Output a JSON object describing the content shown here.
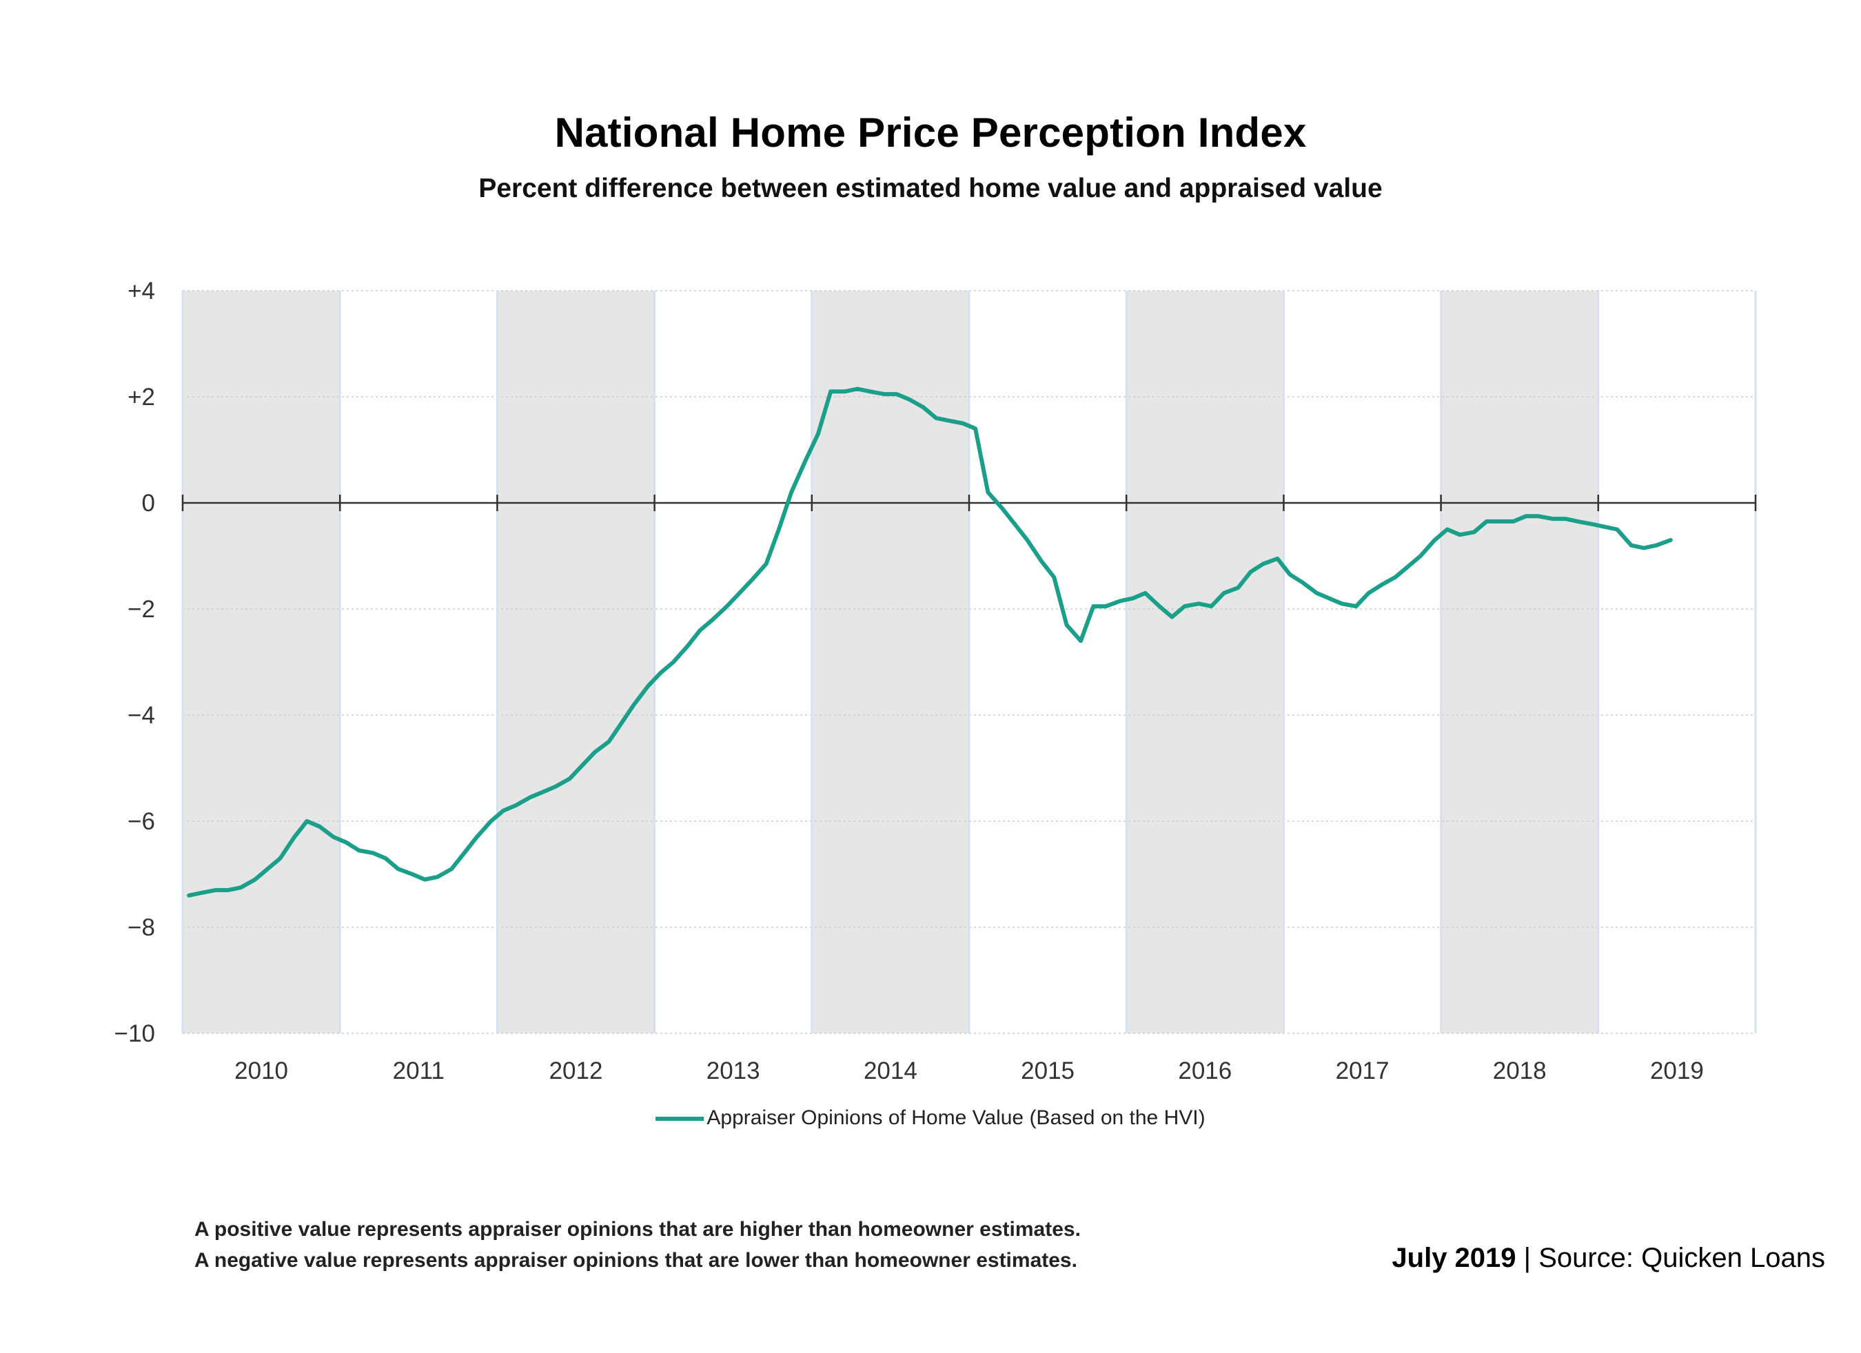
{
  "header": {
    "title": "National Home Price Perception Index",
    "subtitle": "Percent difference between estimated home value and appraised value"
  },
  "legend": {
    "label": "Appraiser Opinions of Home Value (Based on the HVI)"
  },
  "notes": {
    "positive": "A positive value represents appraiser opinions that are higher than homeowner estimates.",
    "negative": "A negative value represents appraiser opinions that are lower than homeowner estimates."
  },
  "source": {
    "date": "July 2019",
    "separator": "|",
    "text": "Source: Quicken Loans"
  },
  "colors": {
    "line": "#1a9f8a",
    "band": "#e6e6e6",
    "zero": "#333333",
    "grid": "#cccccc"
  },
  "chart_data": {
    "type": "line",
    "y_tick_labels": [
      "+4",
      "+2",
      "0",
      "−2",
      "−4",
      "−6",
      "−8",
      "−10"
    ],
    "y_tick_values": [
      4,
      2,
      0,
      -2,
      -4,
      -6,
      -8,
      -10
    ],
    "ylim": [
      -10,
      4
    ],
    "x_tick_labels": [
      "2010",
      "2011",
      "2012",
      "2013",
      "2014",
      "2015",
      "2016",
      "2017",
      "2018",
      "2019"
    ],
    "xlim": [
      2010.0,
      2020.0
    ],
    "shaded_years": [
      "2010",
      "2012",
      "2014",
      "2016",
      "2018"
    ],
    "grid": true,
    "series": [
      {
        "name": "Appraiser Opinions of Home Value (Based on the HVI)",
        "color": "#1a9f8a",
        "x": [
          2010.04,
          2010.12,
          2010.21,
          2010.29,
          2010.37,
          2010.46,
          2010.54,
          2010.62,
          2010.71,
          2010.79,
          2010.87,
          2010.96,
          2011.04,
          2011.12,
          2011.21,
          2011.29,
          2011.37,
          2011.46,
          2011.54,
          2011.62,
          2011.71,
          2011.79,
          2011.87,
          2011.96,
          2012.04,
          2012.12,
          2012.21,
          2012.29,
          2012.37,
          2012.46,
          2012.54,
          2012.62,
          2012.71,
          2012.79,
          2012.87,
          2012.96,
          2013.04,
          2013.12,
          2013.21,
          2013.29,
          2013.37,
          2013.46,
          2013.54,
          2013.62,
          2013.71,
          2013.79,
          2013.87,
          2013.96,
          2014.04,
          2014.12,
          2014.21,
          2014.29,
          2014.37,
          2014.46,
          2014.54,
          2014.62,
          2014.71,
          2014.79,
          2014.87,
          2014.96,
          2015.04,
          2015.12,
          2015.21,
          2015.29,
          2015.37,
          2015.46,
          2015.54,
          2015.62,
          2015.71,
          2015.79,
          2015.87,
          2015.96,
          2016.04,
          2016.12,
          2016.21,
          2016.29,
          2016.37,
          2016.46,
          2016.54,
          2016.62,
          2016.71,
          2016.79,
          2016.87,
          2016.96,
          2017.04,
          2017.12,
          2017.21,
          2017.29,
          2017.37,
          2017.46,
          2017.54,
          2017.62,
          2017.71,
          2017.79,
          2017.87,
          2017.96,
          2018.04,
          2018.12,
          2018.21,
          2018.29,
          2018.37,
          2018.46,
          2018.54,
          2018.62,
          2018.71,
          2018.79,
          2018.87,
          2018.96,
          2019.04,
          2019.12,
          2019.21,
          2019.29,
          2019.37,
          2019.46
        ],
        "values": [
          -7.4,
          -7.35,
          -7.3,
          -7.3,
          -7.25,
          -7.1,
          -6.9,
          -6.7,
          -6.3,
          -6.0,
          -6.1,
          -6.3,
          -6.4,
          -6.55,
          -6.6,
          -6.7,
          -6.9,
          -7.0,
          -7.1,
          -7.05,
          -6.9,
          -6.6,
          -6.3,
          -6.0,
          -5.8,
          -5.7,
          -5.55,
          -5.45,
          -5.35,
          -5.2,
          -4.95,
          -4.7,
          -4.5,
          -4.15,
          -3.8,
          -3.45,
          -3.2,
          -3.0,
          -2.7,
          -2.4,
          -2.2,
          -1.95,
          -1.7,
          -1.45,
          -1.15,
          -0.5,
          0.2,
          0.8,
          1.3,
          2.1,
          2.1,
          2.15,
          2.1,
          2.05,
          2.05,
          1.95,
          1.8,
          1.6,
          1.55,
          1.5,
          1.4,
          0.2,
          -0.1,
          -0.4,
          -0.7,
          -1.1,
          -1.4,
          -2.3,
          -2.6,
          -1.95,
          -1.95,
          -1.85,
          -1.8,
          -1.7,
          -1.95,
          -2.15,
          -1.95,
          -1.9,
          -1.95,
          -1.7,
          -1.6,
          -1.3,
          -1.15,
          -1.05,
          -1.35,
          -1.5,
          -1.7,
          -1.8,
          -1.9,
          -1.95,
          -1.7,
          -1.55,
          -1.4,
          -1.2,
          -1.0,
          -0.7,
          -0.5,
          -0.6,
          -0.55,
          -0.35,
          -0.35,
          -0.35,
          -0.25,
          -0.25,
          -0.3,
          -0.3,
          -0.35,
          -0.4,
          -0.45,
          -0.5,
          -0.8,
          -0.85,
          -0.8,
          -0.7
        ]
      }
    ]
  }
}
